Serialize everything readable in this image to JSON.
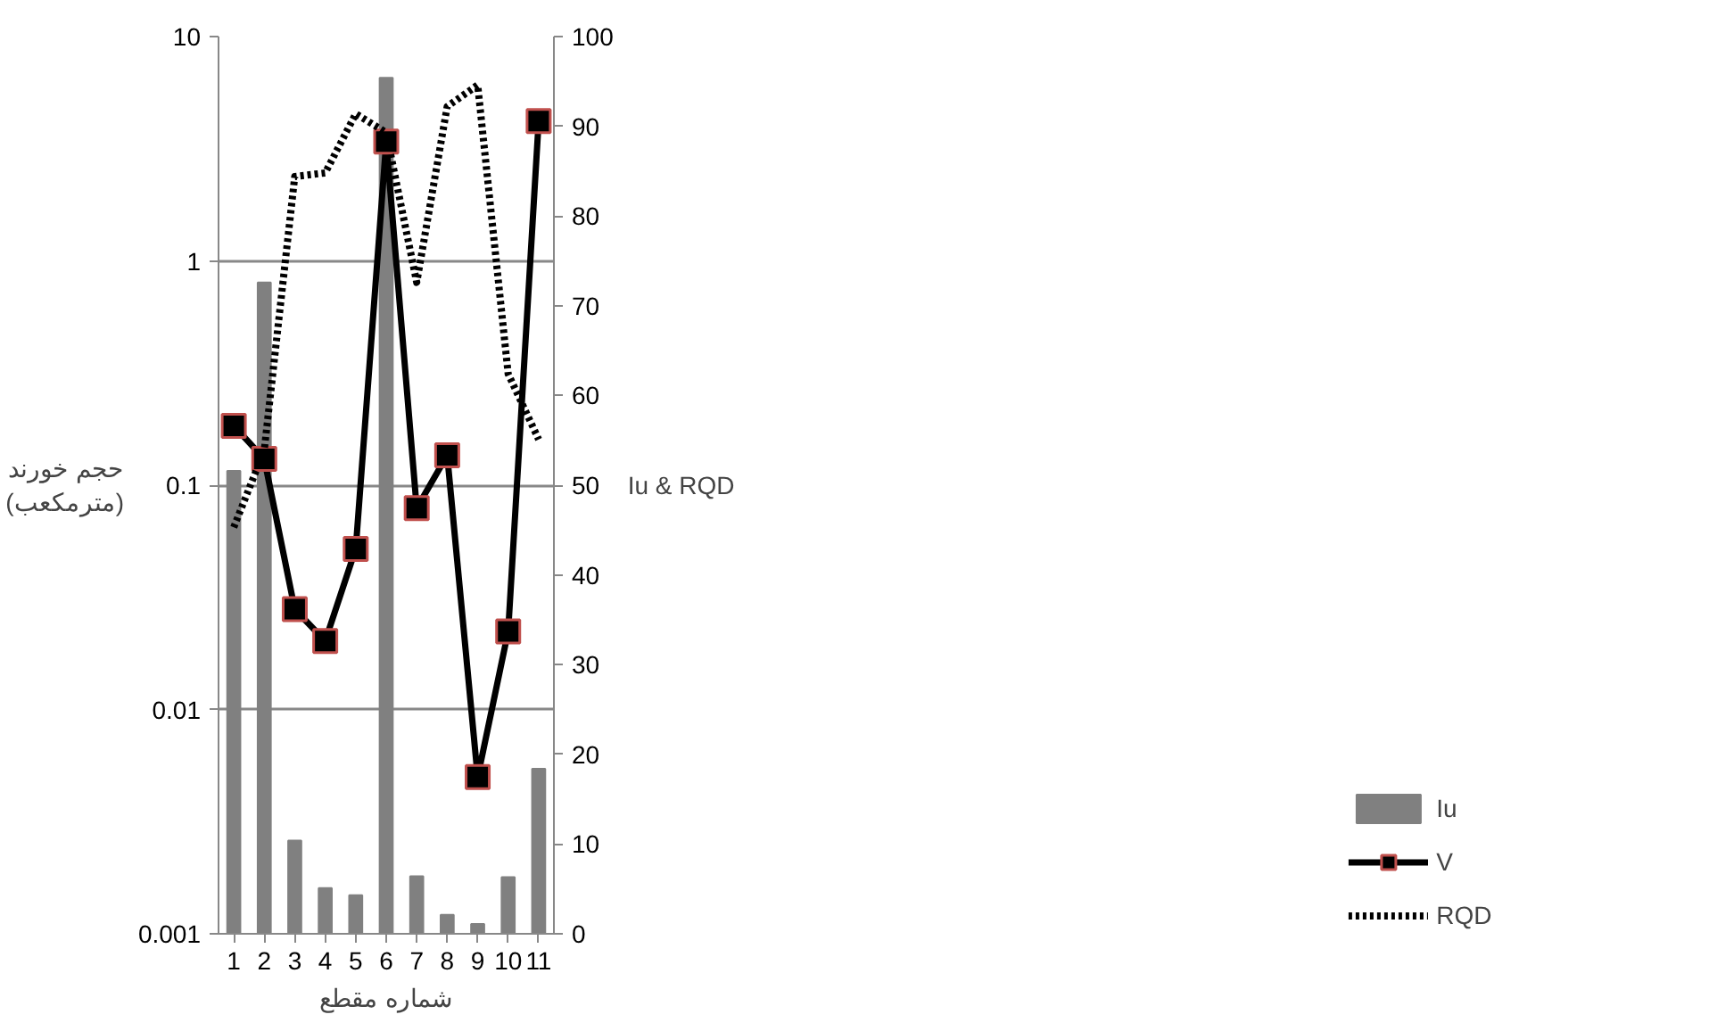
{
  "chart_data": {
    "type": "bar",
    "xlabel": "شماره مقطع",
    "ylabel": "حجم خورند\n(مترمکعب)",
    "y2label": "Iu & RQD",
    "categories": [
      "1",
      "2",
      "3",
      "4",
      "5",
      "6",
      "7",
      "8",
      "9",
      "10",
      "11"
    ],
    "series": [
      {
        "name": "Iu",
        "axis": "y2",
        "color": "#808080",
        "values": [
          51.6,
          72.6,
          10.4,
          5.1,
          4.3,
          95.4,
          6.4,
          2.1,
          1.1,
          6.3,
          18.4
        ]
      },
      {
        "name": "V",
        "type": "line",
        "axis": "y",
        "color": "#000000",
        "marker": "square",
        "line_style": "solid",
        "values": [
          0.184,
          0.131,
          0.028,
          0.0202,
          0.052,
          3.4,
          0.079,
          0.136,
          0.005,
          0.0223,
          4.2
        ]
      },
      {
        "name": "RQD",
        "type": "line",
        "axis": "y2",
        "color": "#000000",
        "marker": "none",
        "line_style": "dotted",
        "values": [
          45.3,
          53.9,
          84.4,
          84.8,
          91.4,
          89.3,
          72.6,
          92.2,
          94.6,
          62.4,
          55.1
        ]
      }
    ],
    "log": "y",
    "ylim": [
      0.001,
      10
    ],
    "yticks": [
      0.001,
      0.01,
      0.1,
      1,
      10
    ],
    "y2lim": [
      0,
      100
    ],
    "y2ticks": [
      0,
      10,
      20,
      30,
      40,
      50,
      60,
      70,
      80,
      90,
      100
    ],
    "grid": "y",
    "legend": "bottom right"
  }
}
